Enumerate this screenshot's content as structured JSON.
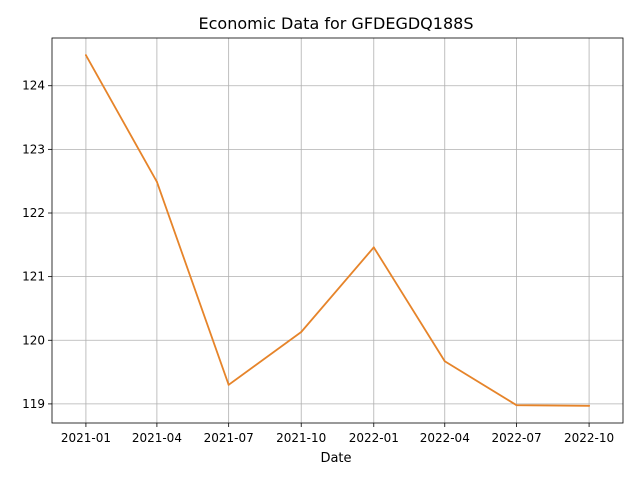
{
  "chart_data": {
    "type": "line",
    "title": "Economic Data for GFDEGDQ188S",
    "xlabel": "Date",
    "ylabel": "",
    "x_ticks": [
      "2021-01",
      "2021-04",
      "2021-07",
      "2021-10",
      "2022-01",
      "2022-04",
      "2022-07",
      "2022-10"
    ],
    "y_ticks": [
      119,
      120,
      121,
      122,
      123,
      124
    ],
    "xlim": [
      "2020-11-19",
      "2022-11-13"
    ],
    "ylim": [
      118.7,
      124.75
    ],
    "grid": true,
    "series": [
      {
        "name": "",
        "color": "#e6842a",
        "x": [
          "2021-01-01",
          "2021-04-01",
          "2021-07-01",
          "2021-10-01",
          "2022-01-01",
          "2022-04-01",
          "2022-07-01",
          "2022-10-01"
        ],
        "values": [
          124.48,
          122.49,
          119.3,
          120.13,
          121.46,
          119.67,
          118.98,
          118.97
        ]
      }
    ]
  }
}
